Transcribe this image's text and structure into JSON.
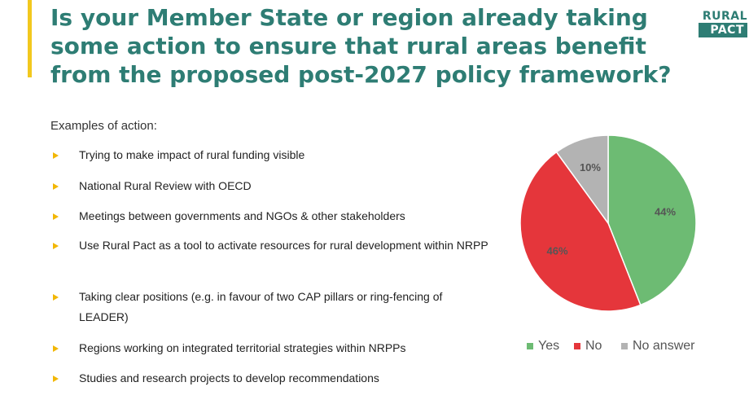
{
  "slide": {
    "title_lines": [
      "Is your Member State or region already taking",
      "some action to ensure that rural areas benefit",
      "from the proposed post-2027 policy framework?"
    ],
    "logo": {
      "line1": "RURAL",
      "line2": "PACT"
    },
    "examples_heading": "Examples of action:",
    "actions": [
      "Trying to make impact of rural funding visible",
      "National Rural Review with OECD",
      "Meetings between governments and NGOs & other stakeholders",
      "Use Rural Pact as a tool to activate resources for rural development within NRPP",
      "Taking clear positions (e.g. in favour of two CAP pillars or ring-fencing of LEADER)",
      "Regions working on integrated territorial strategies within NRPPs",
      "Studies and research projects to develop recommendations"
    ],
    "colors": {
      "title": "#2e7d74",
      "accent": "#f2c81e",
      "bullet": "#f2b705"
    }
  },
  "chart_data": {
    "type": "pie",
    "title": "",
    "categories": [
      "Yes",
      "No",
      "No answer"
    ],
    "values": [
      44,
      46,
      10
    ],
    "data_labels": [
      "44%",
      "46%",
      "10%"
    ],
    "colors": [
      "#6dbb73",
      "#e5363b",
      "#b3b3b3"
    ],
    "start_angle_deg": 0,
    "direction": "clockwise",
    "legend": {
      "placement": "bottom",
      "entries": [
        "Yes",
        "No",
        "No answer"
      ]
    }
  }
}
